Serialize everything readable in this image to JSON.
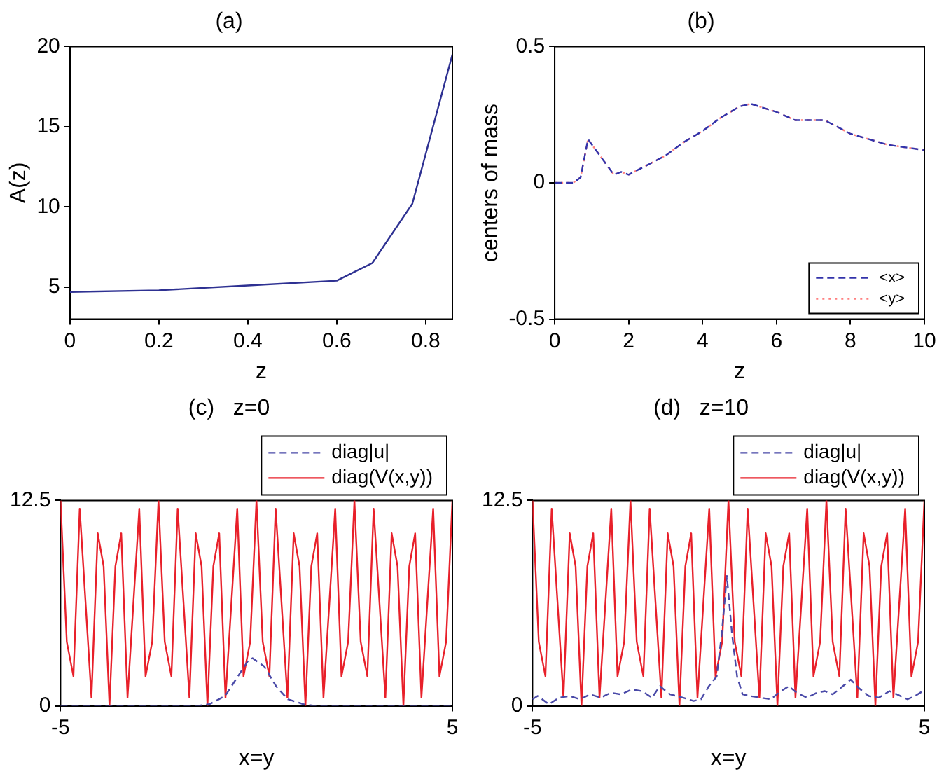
{
  "chart_data": [
    {
      "type": "line",
      "title": "(a)",
      "xlabel": "z",
      "ylabel": "A(z)",
      "xlim": [
        0,
        0.86
      ],
      "xticks": [
        0,
        0.2,
        0.4,
        0.6,
        0.8
      ],
      "ylim": [
        3,
        20
      ],
      "yticks": [
        5,
        10,
        15,
        20
      ],
      "grid": false,
      "legend": false,
      "marker": "none",
      "series": [
        {
          "color": "#2e3192",
          "line_style": "solid",
          "x": [
            0,
            0.2,
            0.4,
            0.6,
            0.68,
            0.77,
            0.86
          ],
          "values": [
            4.7,
            4.8,
            5.1,
            5.4,
            6.5,
            10.2,
            19.5
          ]
        }
      ]
    },
    {
      "type": "line",
      "title": "(b)",
      "xlabel": "z",
      "ylabel": "centers of mass",
      "xlim": [
        0,
        10
      ],
      "xticks": [
        0,
        2,
        4,
        6,
        8,
        10
      ],
      "ylim": [
        -0.5,
        0.5
      ],
      "yticks": [
        -0.5,
        0,
        0.5
      ],
      "grid": false,
      "legend": "bottom right",
      "marker": "none",
      "series": [
        {
          "name": "<x>",
          "color": "#3333aa",
          "line_style": "dashed",
          "x": [
            0,
            0.5,
            0.7,
            0.9,
            1.6,
            1.8,
            2,
            3,
            3.5,
            4,
            4.5,
            5,
            5.3,
            6,
            6.5,
            7,
            7.3,
            8,
            9,
            10
          ],
          "values": [
            0,
            0,
            0.02,
            0.16,
            0.03,
            0.04,
            0.03,
            0.1,
            0.15,
            0.19,
            0.24,
            0.28,
            0.29,
            0.26,
            0.23,
            0.23,
            0.23,
            0.18,
            0.14,
            0.12
          ]
        },
        {
          "name": "<y>",
          "color": "#ff7f7f",
          "line_style": "dotted",
          "x": [
            0,
            0.5,
            0.7,
            0.9,
            1.6,
            1.8,
            2,
            3,
            3.5,
            4,
            4.5,
            5,
            5.3,
            6,
            6.5,
            7,
            7.3,
            8,
            9,
            10
          ],
          "values": [
            0,
            0,
            0.02,
            0.16,
            0.03,
            0.04,
            0.03,
            0.1,
            0.15,
            0.19,
            0.24,
            0.28,
            0.29,
            0.26,
            0.23,
            0.23,
            0.23,
            0.18,
            0.14,
            0.12
          ]
        }
      ]
    },
    {
      "type": "line",
      "title": "(c)   z=0",
      "xlabel": "x=y",
      "xlim": [
        -5,
        5
      ],
      "xticks": [
        -5,
        5
      ],
      "ylim": [
        0,
        12.5
      ],
      "yticks": [
        0,
        12.5
      ],
      "grid": false,
      "legend": "top right",
      "marker": "none",
      "series": [
        {
          "name": "diag|u|",
          "color": "#4a4aa8",
          "line_style": "dashed",
          "x": [
            -5,
            -1.5,
            -1.2,
            -0.8,
            -0.5,
            -0.2,
            -0.1,
            0.2,
            0.5,
            0.8,
            1.2,
            1.5,
            5
          ],
          "values": [
            0,
            0,
            0.1,
            0.6,
            1.7,
            2.8,
            2.9,
            2.4,
            1.2,
            0.4,
            0.1,
            0,
            0
          ]
        },
        {
          "name": "diag(V(x,y))",
          "color": "#e8202a",
          "line_style": "solid",
          "x": [
            -5,
            -4.84,
            -4.67,
            -4.51,
            -4.21,
            -4.05,
            -3.9,
            -3.75,
            -3.6,
            -3.45,
            -3.29,
            -2.99,
            -2.83,
            -2.66,
            -2.5,
            -2.34,
            -2.17,
            -2.01,
            -1.71,
            -1.55,
            -1.4,
            -1.25,
            -1.1,
            -0.95,
            -0.79,
            -0.49,
            -0.33,
            -0.16,
            0,
            0.16,
            0.33,
            0.49,
            0.79,
            0.95,
            1.1,
            1.25,
            1.4,
            1.55,
            1.71,
            2.01,
            2.17,
            2.34,
            2.5,
            2.66,
            2.83,
            2.99,
            3.29,
            3.45,
            3.6,
            3.75,
            3.9,
            4.05,
            4.21,
            4.51,
            4.67,
            4.84,
            5
          ],
          "values": [
            12.5,
            3.9,
            1.8,
            12,
            0.5,
            10.5,
            8.5,
            0,
            8.5,
            10.5,
            0.5,
            12,
            1.8,
            3.9,
            12.5,
            3.9,
            1.8,
            12,
            0.5,
            10.5,
            8.5,
            0,
            8.5,
            10.5,
            0.5,
            12,
            1.8,
            3.9,
            12.5,
            3.9,
            1.8,
            12,
            0.5,
            10.5,
            8.5,
            0,
            8.5,
            10.5,
            0.5,
            12,
            1.8,
            3.9,
            12.5,
            3.9,
            1.8,
            12,
            0.5,
            10.5,
            8.5,
            0,
            8.5,
            10.5,
            0.5,
            12,
            1.8,
            3.9,
            12.5
          ]
        }
      ]
    },
    {
      "type": "line",
      "title": "(d)   z=10",
      "xlabel": "x=y",
      "xlim": [
        -5,
        5
      ],
      "xticks": [
        -5,
        5
      ],
      "ylim": [
        0,
        12.5
      ],
      "yticks": [
        0,
        12.5
      ],
      "grid": false,
      "legend": "top right",
      "marker": "none",
      "series": [
        {
          "name": "diag|u|",
          "color": "#4a4aa8",
          "line_style": "dashed",
          "x": [
            -5,
            -4.87,
            -4.58,
            -4.32,
            -4.05,
            -3.79,
            -3.53,
            -3.26,
            -3,
            -2.74,
            -2.47,
            -2.21,
            -1.95,
            -1.75,
            -1.49,
            -1.16,
            -0.89,
            -0.7,
            -0.5,
            -0.3,
            -0.17,
            -0.04,
            0.09,
            0.22,
            0.36,
            0.55,
            0.82,
            1.08,
            1.34,
            1.54,
            1.74,
            2,
            2.26,
            2.46,
            2.66,
            2.92,
            3.12,
            3.32,
            3.58,
            3.84,
            4.11,
            4.3,
            4.57,
            4.76,
            4.96
          ],
          "values": [
            0.4,
            0.6,
            0.1,
            0.5,
            0.6,
            0.4,
            0.7,
            0.5,
            0.8,
            0.7,
            1,
            0.9,
            0.5,
            1.2,
            0.7,
            0.5,
            0.3,
            0.4,
            1.2,
            1.8,
            4.4,
            7.9,
            4.4,
            1.8,
            0.7,
            0.6,
            0.5,
            0.4,
            0.9,
            1.2,
            0.8,
            0.5,
            0.8,
            0.9,
            0.7,
            1.2,
            1.6,
            1.1,
            0.6,
            0.5,
            0.9,
            0.7,
            0.4,
            0.6,
            0.9
          ]
        },
        {
          "name": "diag(V(x,y))",
          "color": "#e8202a",
          "line_style": "solid",
          "x": [
            -5,
            -4.84,
            -4.67,
            -4.51,
            -4.21,
            -4.05,
            -3.9,
            -3.75,
            -3.6,
            -3.45,
            -3.29,
            -2.99,
            -2.83,
            -2.66,
            -2.5,
            -2.34,
            -2.17,
            -2.01,
            -1.71,
            -1.55,
            -1.4,
            -1.25,
            -1.1,
            -0.95,
            -0.79,
            -0.49,
            -0.33,
            -0.16,
            0,
            0.16,
            0.33,
            0.49,
            0.79,
            0.95,
            1.1,
            1.25,
            1.4,
            1.55,
            1.71,
            2.01,
            2.17,
            2.34,
            2.5,
            2.66,
            2.83,
            2.99,
            3.29,
            3.45,
            3.6,
            3.75,
            3.9,
            4.05,
            4.21,
            4.51,
            4.67,
            4.84,
            5
          ],
          "values": [
            12.5,
            3.9,
            1.8,
            12,
            0.5,
            10.5,
            8.5,
            0,
            8.5,
            10.5,
            0.5,
            12,
            1.8,
            3.9,
            12.5,
            3.9,
            1.8,
            12,
            0.5,
            10.5,
            8.5,
            0,
            8.5,
            10.5,
            0.5,
            12,
            1.8,
            3.9,
            12.5,
            3.9,
            1.8,
            12,
            0.5,
            10.5,
            8.5,
            0,
            8.5,
            10.5,
            0.5,
            12,
            1.8,
            3.9,
            12.5,
            3.9,
            1.8,
            12,
            0.5,
            10.5,
            8.5,
            0,
            8.5,
            10.5,
            0.5,
            12,
            1.8,
            3.9,
            12.5
          ]
        }
      ]
    }
  ]
}
